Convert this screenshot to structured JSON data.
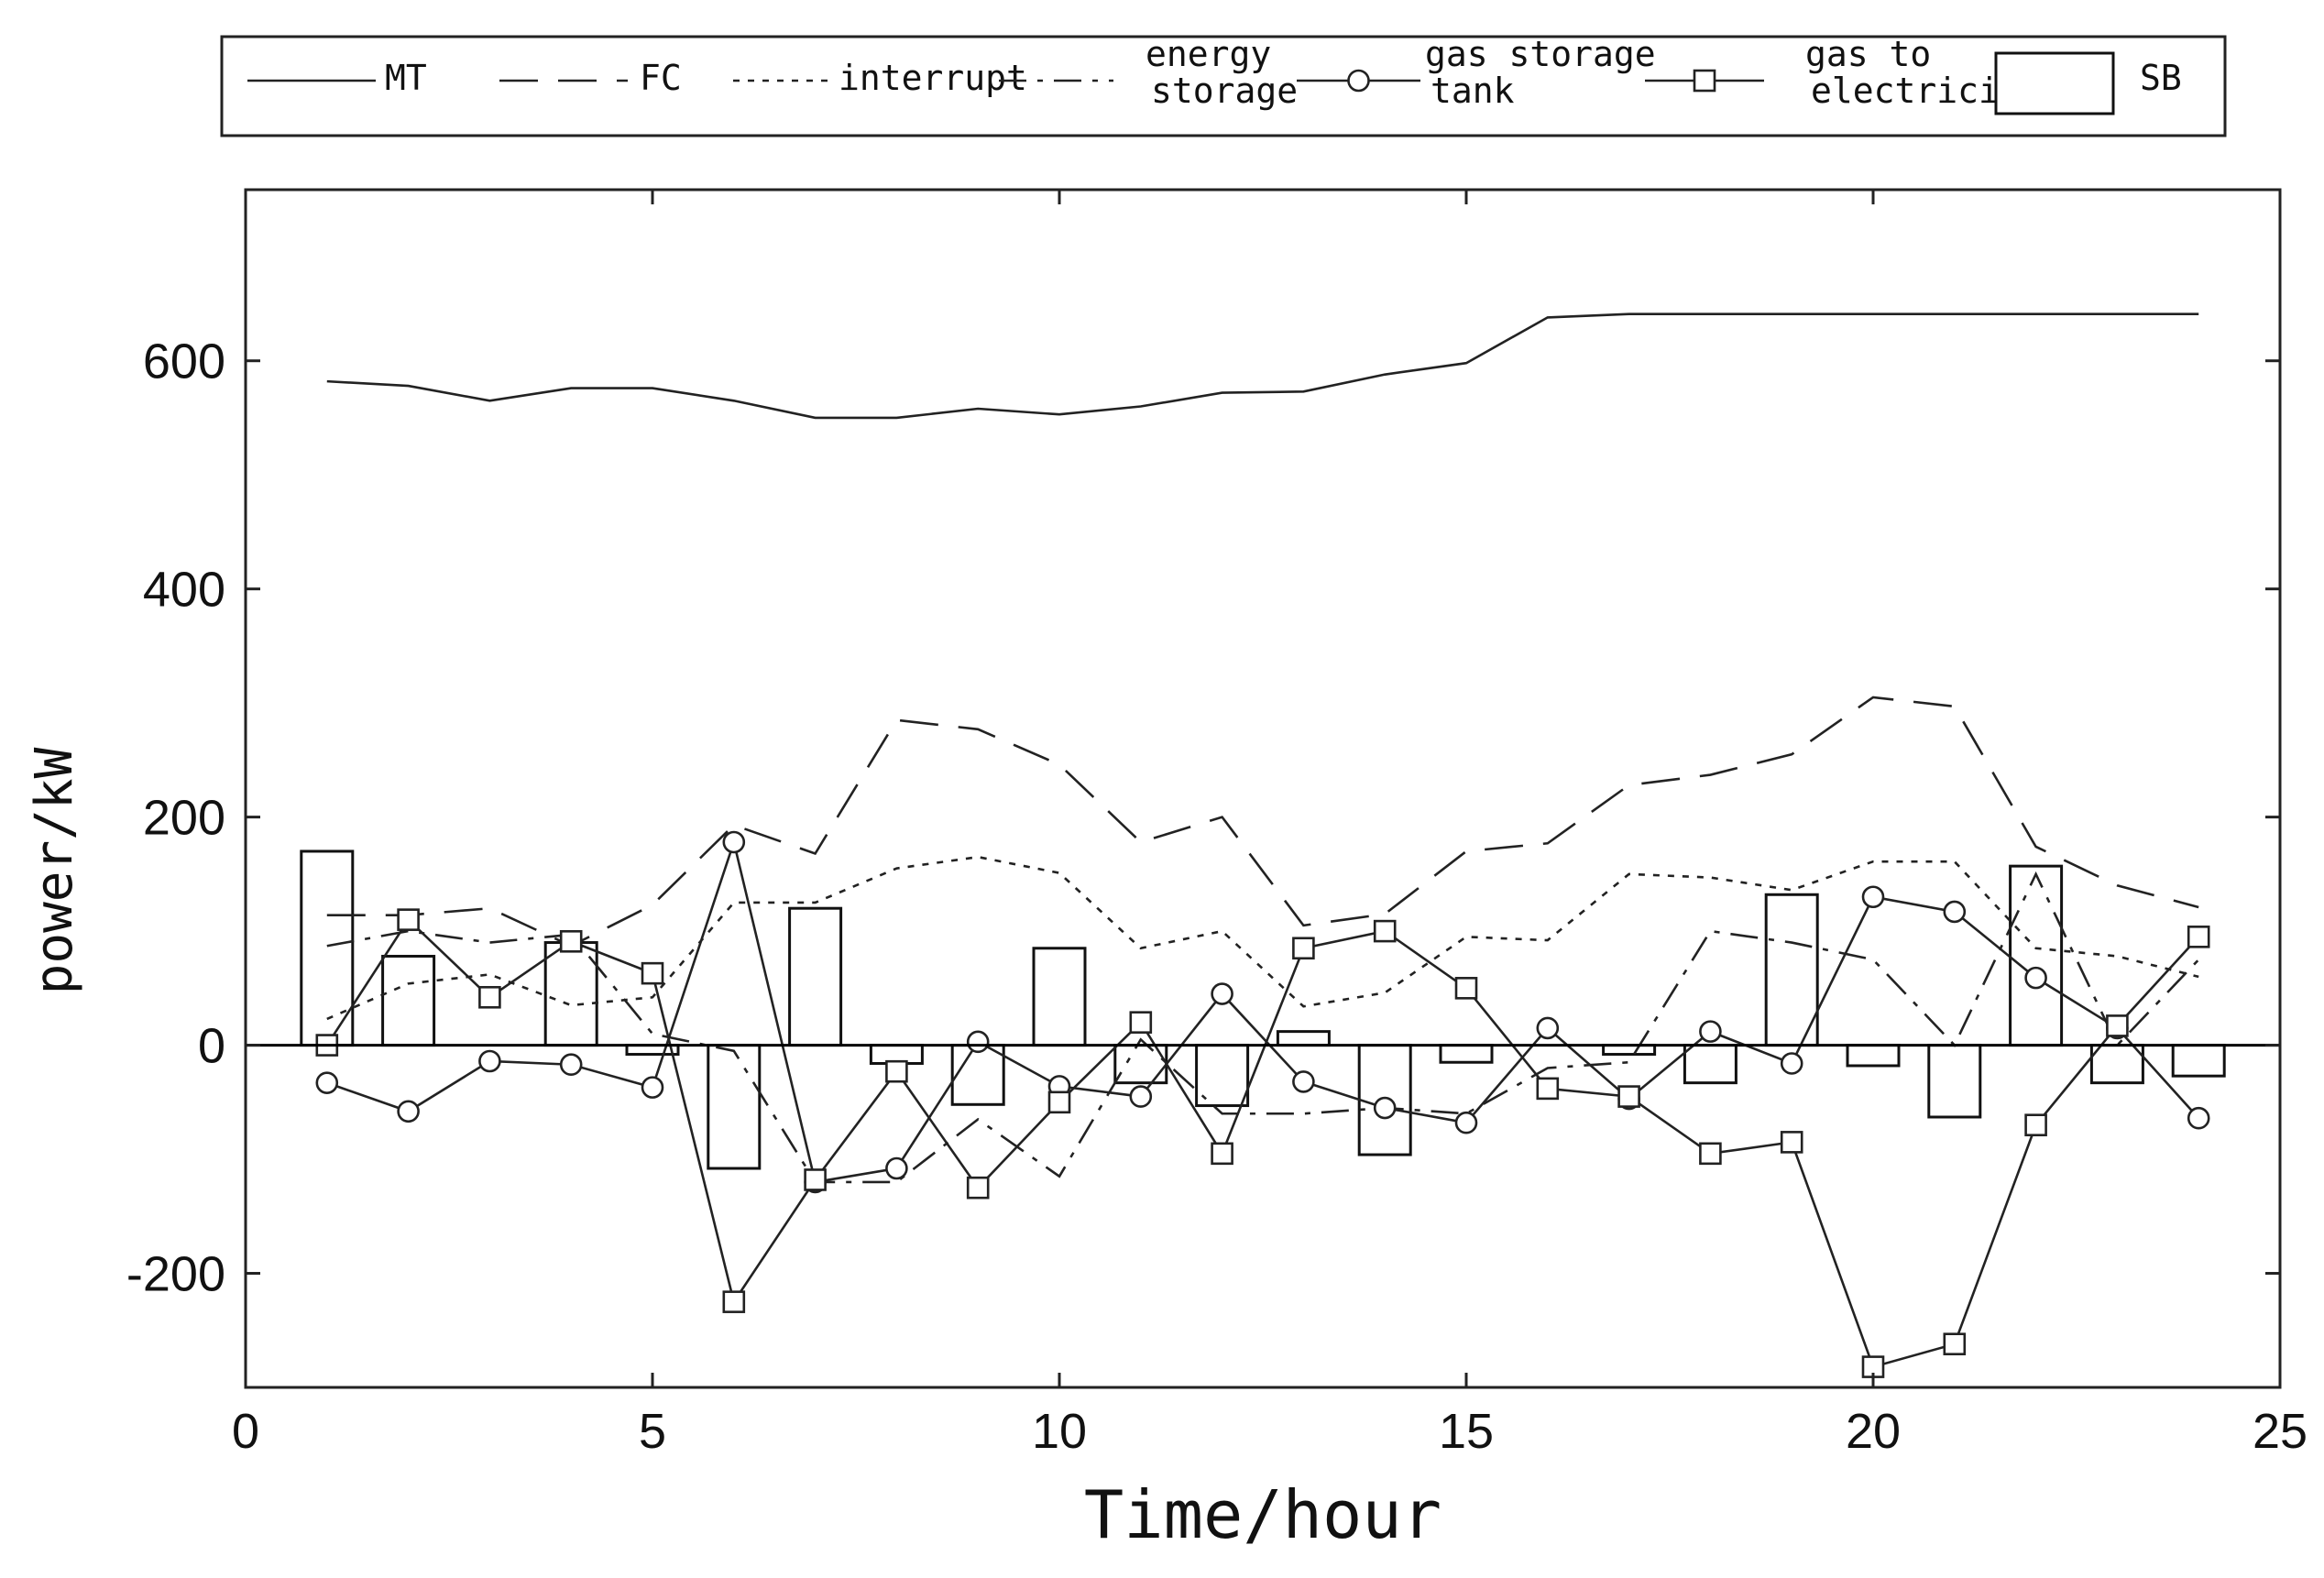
{
  "chart_data": {
    "type": "line",
    "title": "",
    "xlabel": "Time/hour",
    "ylabel": "power/kW",
    "xlim": [
      0,
      25
    ],
    "ylim": [
      -300,
      750
    ],
    "xticks": [
      0,
      5,
      10,
      15,
      20,
      25
    ],
    "yticks": [
      -200,
      0,
      200,
      400,
      600
    ],
    "grid": false,
    "legend_position": "top",
    "x": [
      1,
      2,
      3,
      4,
      5,
      6,
      7,
      8,
      9,
      10,
      11,
      12,
      13,
      14,
      15,
      16,
      17,
      18,
      19,
      20,
      21,
      22,
      23,
      24
    ],
    "series": [
      {
        "name": "MT",
        "style": "solid",
        "values": [
          582,
          578,
          565,
          576,
          576,
          565,
          550,
          550,
          558,
          553,
          560,
          572,
          573,
          588,
          598,
          638,
          641,
          641,
          641,
          641,
          641,
          641,
          641,
          641
        ]
      },
      {
        "name": "FC",
        "style": "dashed",
        "values": [
          114,
          114,
          120,
          87,
          123,
          193,
          168,
          285,
          277,
          246,
          178,
          200,
          105,
          115,
          170,
          177,
          228,
          237,
          255,
          305,
          297,
          174,
          140,
          121
        ]
      },
      {
        "name": "interrupt",
        "style": "dotted",
        "values": [
          23,
          54,
          62,
          35,
          42,
          125,
          125,
          155,
          165,
          151,
          85,
          100,
          34,
          46,
          95,
          92,
          150,
          147,
          136,
          161,
          161,
          85,
          78,
          60
        ]
      },
      {
        "name": "energy\nstorage",
        "style": "dashdot",
        "values": [
          87,
          100,
          90,
          97,
          10,
          -5,
          -120,
          -120,
          -65,
          -115,
          5,
          -60,
          -60,
          -55,
          -60,
          -20,
          -15,
          100,
          90,
          75,
          0,
          150,
          0,
          75
        ]
      },
      {
        "name": "gas storage\ntank",
        "style": "circle",
        "values": [
          -33,
          -58,
          -14,
          -17,
          -37,
          178,
          -120,
          -108,
          3,
          -36,
          -45,
          45,
          -32,
          -55,
          -68,
          15,
          -47,
          12,
          -16,
          130,
          117,
          59,
          15,
          -64
        ]
      },
      {
        "name": "gas to\nelectricity",
        "style": "square",
        "values": [
          0,
          110,
          42,
          91,
          63,
          -225,
          -118,
          -23,
          -125,
          -50,
          20,
          -95,
          85,
          100,
          50,
          -38,
          -45,
          -95,
          -85,
          -282,
          -262,
          -70,
          17,
          95
        ]
      },
      {
        "name": "SB",
        "style": "bar",
        "values": [
          170,
          78,
          0,
          90,
          -8,
          -108,
          120,
          -16,
          -52,
          85,
          -33,
          -53,
          12,
          -96,
          -15,
          0,
          -8,
          -33,
          132,
          -18,
          -63,
          157,
          -33,
          -27
        ]
      }
    ]
  }
}
